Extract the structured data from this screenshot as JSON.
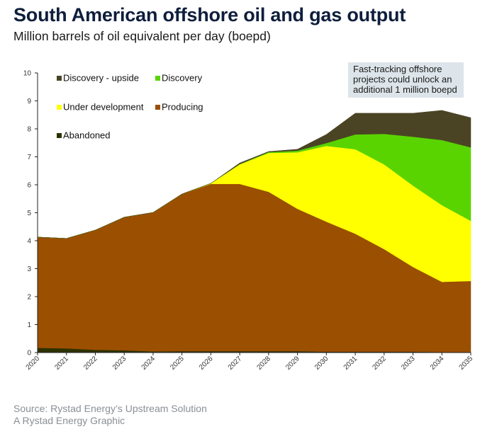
{
  "header": {
    "title": "South American offshore oil and gas output",
    "subtitle": "Million barrels of oil equivalent per day (boepd)"
  },
  "footer": {
    "source": "Source: Rystad Energy’s Upstream Solution",
    "credit": "A Rystad Energy Graphic"
  },
  "chart_data": {
    "type": "area",
    "stacked": true,
    "title": "South American offshore oil and gas output",
    "subtitle": "Million barrels of oil equivalent per day (boepd)",
    "xlabel": "",
    "ylabel": "",
    "x": [
      2020,
      2021,
      2022,
      2023,
      2024,
      2025,
      2026,
      2027,
      2028,
      2029,
      2030,
      2031,
      2032,
      2033,
      2034,
      2035
    ],
    "ylim": [
      0,
      10
    ],
    "yticks": [
      0,
      1,
      2,
      3,
      4,
      5,
      6,
      7,
      8,
      9,
      10
    ],
    "grid": false,
    "legend_position": "top-left",
    "series": [
      {
        "name": "Abandoned",
        "color": "#2e3100",
        "values": [
          0.17,
          0.15,
          0.1,
          0.08,
          0.04,
          0.05,
          0.05,
          0.05,
          0.05,
          0.05,
          0.03,
          0.03,
          0.03,
          0.03,
          0.02,
          0.02
        ]
      },
      {
        "name": "Producing",
        "color": "#9b4f00",
        "values": [
          3.96,
          3.93,
          4.28,
          4.76,
          4.97,
          5.62,
          5.98,
          5.98,
          5.7,
          5.09,
          4.65,
          4.22,
          3.67,
          3.03,
          2.51,
          2.54
        ]
      },
      {
        "name": "Under development",
        "color": "#ffff00",
        "values": [
          0,
          0,
          0,
          0,
          0,
          0,
          0.02,
          0.7,
          1.39,
          2.02,
          2.71,
          3.02,
          3.03,
          2.91,
          2.74,
          2.15
        ]
      },
      {
        "name": "Discovery",
        "color": "#5ad400",
        "values": [
          0,
          0,
          0,
          0,
          0,
          0,
          0,
          0.01,
          0.03,
          0.06,
          0.1,
          0.53,
          1.09,
          1.75,
          2.33,
          2.63
        ]
      },
      {
        "name": "Discovery - upside",
        "color": "#4a4424",
        "values": [
          0,
          0,
          0,
          0,
          0,
          0,
          0,
          0.04,
          0.02,
          0.05,
          0.31,
          0.76,
          0.74,
          0.84,
          1.06,
          1.06
        ]
      }
    ],
    "legend": [
      {
        "label": "Discovery - upside",
        "color": "#4a4424"
      },
      {
        "label": "Discovery",
        "color": "#5ad400"
      },
      {
        "label": "Under development",
        "color": "#ffff00"
      },
      {
        "label": "Producing",
        "color": "#9b4f00"
      },
      {
        "label": "Abandoned",
        "color": "#2e3100"
      }
    ],
    "annotation": {
      "lines": [
        "Fast-tracking offshore",
        "projects could unlock an",
        "additional 1 million boepd"
      ],
      "background": "#dde5ea"
    }
  }
}
